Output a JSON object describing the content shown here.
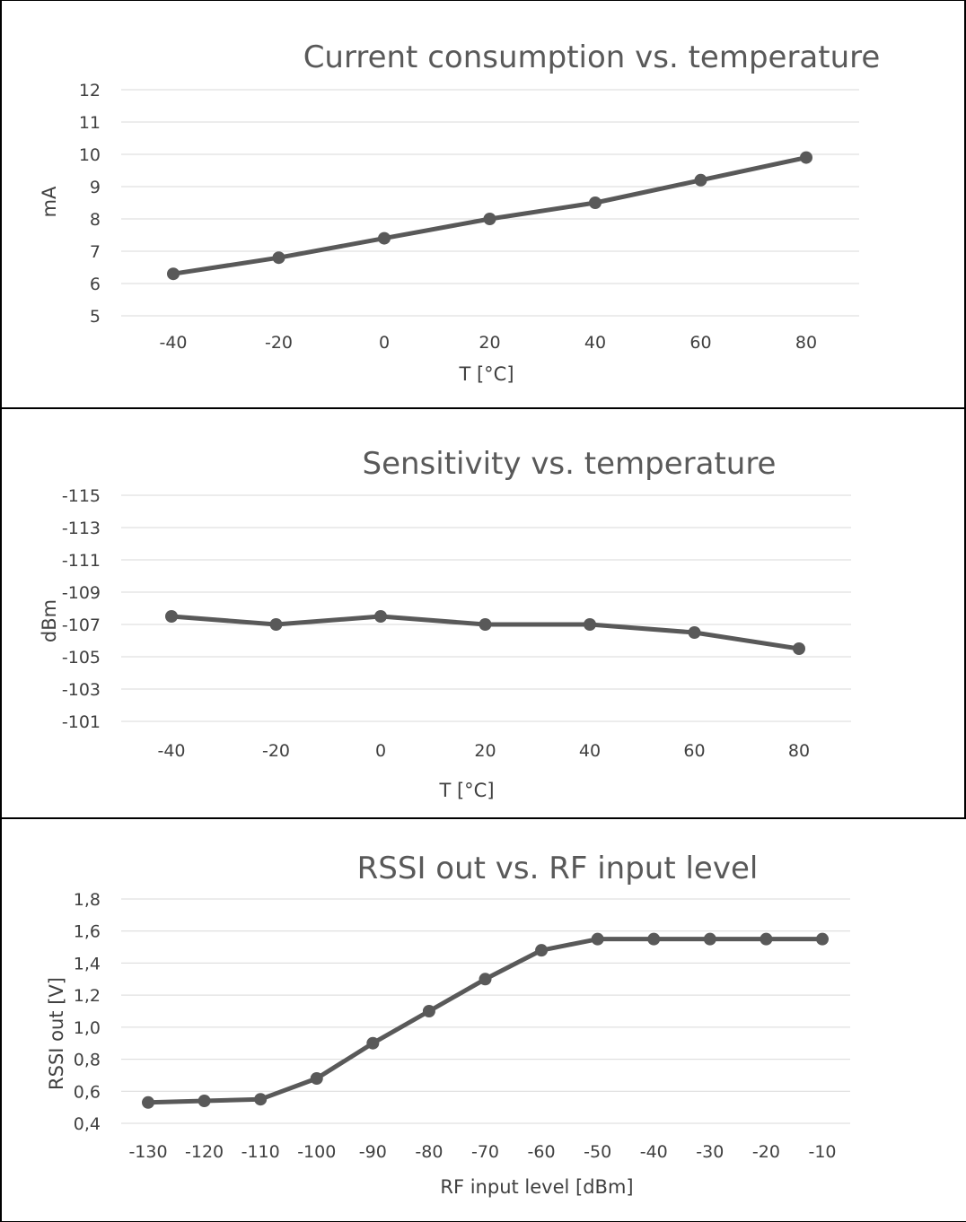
{
  "chart_data": [
    {
      "type": "line",
      "title": "Current consumption vs. temperature",
      "xlabel": "T [°C]",
      "ylabel": "mA",
      "categories": [
        "-40",
        "-20",
        "0",
        "20",
        "40",
        "60",
        "80"
      ],
      "yticks": [
        "12",
        "11",
        "10",
        "9",
        "8",
        "7",
        "6",
        "5"
      ],
      "ylim": [
        5,
        12
      ],
      "series": [
        {
          "values": [
            6.3,
            6.8,
            7.4,
            8.0,
            8.5,
            9.2,
            9.9
          ]
        }
      ],
      "grid": true,
      "colors": {
        "line": "#595959",
        "grid": "#d9d9d9",
        "text": "#404040",
        "title": "#595959"
      }
    },
    {
      "type": "line",
      "title": "Sensitivity vs. temperature",
      "xlabel": "T [°C]",
      "ylabel": "dBm",
      "categories": [
        "-40",
        "-20",
        "0",
        "20",
        "40",
        "60",
        "80"
      ],
      "yticks": [
        "-115",
        "-113",
        "-111",
        "-109",
        "-107",
        "-105",
        "-103",
        "-101"
      ],
      "ylim": [
        -101,
        -115
      ],
      "series": [
        {
          "values": [
            -107.5,
            -107,
            -107.5,
            -107,
            -107,
            -106.5,
            -105.5
          ]
        }
      ],
      "grid": true,
      "colors": {
        "line": "#595959",
        "grid": "#d9d9d9",
        "text": "#404040",
        "title": "#595959"
      }
    },
    {
      "type": "line",
      "title": "RSSI out vs. RF input level",
      "xlabel": "RF input level [dBm]",
      "ylabel": "RSSI out [V]",
      "categories": [
        "-130",
        "-120",
        "-110",
        "-100",
        "-90",
        "-80",
        "-70",
        "-60",
        "-50",
        "-40",
        "-30",
        "-20",
        "-10"
      ],
      "yticks": [
        "1,8",
        "1,6",
        "1,4",
        "1,2",
        "1,0",
        "0,8",
        "0,6",
        "0,4"
      ],
      "ylim": [
        0.4,
        1.8
      ],
      "series": [
        {
          "values": [
            0.53,
            0.54,
            0.55,
            0.68,
            0.9,
            1.1,
            1.3,
            1.48,
            1.55,
            1.55,
            1.55,
            1.55,
            1.55
          ]
        }
      ],
      "grid": true,
      "colors": {
        "line": "#595959",
        "grid": "#d9d9d9",
        "text": "#404040",
        "title": "#595959"
      }
    }
  ]
}
